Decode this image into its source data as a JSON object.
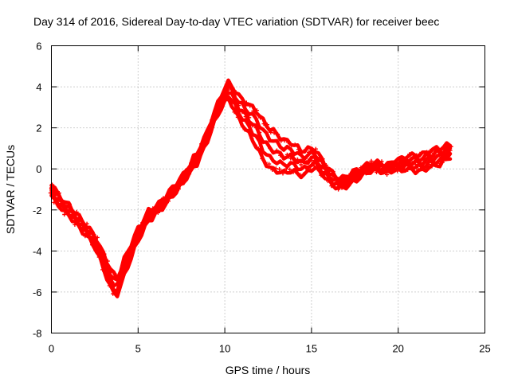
{
  "chart_data": {
    "type": "scatter",
    "title": "Day 314 of 2016, Sidereal Day-to-day VTEC variation (SDTVAR) for receiver beec",
    "xlabel": "GPS time / hours",
    "ylabel": "SDTVAR / TECUs",
    "xlim": [
      0,
      25
    ],
    "ylim": [
      -8,
      6
    ],
    "xticks": [
      0,
      5,
      10,
      15,
      20,
      25
    ],
    "yticks": [
      -8,
      -6,
      -4,
      -2,
      0,
      2,
      4,
      6
    ],
    "grid": true,
    "marker": "plus",
    "color": "#ff0000",
    "series": [
      {
        "name": "SDTVAR",
        "x": [
          0.0,
          0.2,
          0.4,
          0.6,
          0.8,
          1.0,
          1.2,
          1.4,
          1.6,
          1.8,
          2.0,
          2.2,
          2.4,
          2.6,
          2.8,
          3.0,
          3.2,
          3.4,
          3.6,
          3.8,
          4.0,
          4.2,
          4.4,
          4.6,
          4.8,
          5.0,
          5.2,
          5.4,
          5.6,
          5.8,
          6.0,
          6.2,
          6.4,
          6.6,
          6.8,
          7.0,
          7.2,
          7.4,
          7.6,
          7.8,
          8.0,
          8.2,
          8.4,
          8.6,
          8.8,
          9.0,
          9.2,
          9.4,
          9.6,
          9.8,
          10.0,
          10.2,
          10.4,
          10.6,
          10.8,
          11.0,
          11.2,
          11.4,
          11.6,
          11.8,
          12.0,
          12.2,
          12.4,
          12.6,
          12.8,
          13.0,
          13.2,
          13.4,
          13.6,
          13.8,
          14.0,
          14.2,
          14.4,
          14.6,
          14.8,
          15.0,
          15.2,
          15.4,
          15.6,
          15.8,
          16.0,
          16.2,
          16.4,
          16.6,
          16.8,
          17.0,
          17.2,
          17.4,
          17.6,
          17.8,
          18.0,
          18.2,
          18.4,
          18.6,
          18.8,
          19.0,
          19.2,
          19.4,
          19.6,
          19.8,
          20.0,
          20.2,
          20.4,
          20.6,
          20.8,
          21.0,
          21.2,
          21.4,
          21.6,
          21.8,
          22.0,
          22.2,
          22.4,
          22.6,
          22.8,
          23.0
        ],
        "y": [
          -1.0,
          -1.3,
          -1.5,
          -1.7,
          -1.9,
          -2.0,
          -2.2,
          -2.4,
          -2.6,
          -2.8,
          -3.0,
          -3.2,
          -3.4,
          -3.7,
          -4.1,
          -4.5,
          -4.9,
          -5.3,
          -5.6,
          -5.7,
          -5.3,
          -4.8,
          -4.4,
          -4.0,
          -3.6,
          -3.2,
          -2.9,
          -2.6,
          -2.3,
          -2.2,
          -2.0,
          -1.9,
          -1.7,
          -1.5,
          -1.3,
          -1.1,
          -0.9,
          -0.7,
          -0.5,
          -0.2,
          0.0,
          0.3,
          0.5,
          0.9,
          1.2,
          1.6,
          2.1,
          2.5,
          2.9,
          3.3,
          3.6,
          3.8,
          3.6,
          3.3,
          3.0,
          2.8,
          2.6,
          2.4,
          2.2,
          2.0,
          1.7,
          1.4,
          1.2,
          1.0,
          0.9,
          0.8,
          0.7,
          0.6,
          0.6,
          0.6,
          0.5,
          0.4,
          0.3,
          0.3,
          0.4,
          0.5,
          0.5,
          0.3,
          0.1,
          -0.1,
          -0.3,
          -0.5,
          -0.6,
          -0.7,
          -0.7,
          -0.6,
          -0.5,
          -0.4,
          -0.3,
          -0.2,
          -0.1,
          0.0,
          0.1,
          0.1,
          0.1,
          0.1,
          0.0,
          0.0,
          0.1,
          0.2,
          0.2,
          0.2,
          0.3,
          0.3,
          0.3,
          0.3,
          0.3,
          0.3,
          0.4,
          0.5,
          0.5,
          0.6,
          0.6,
          0.7,
          0.8,
          0.9
        ],
        "spread": [
          0.6,
          0.6,
          0.5,
          0.5,
          0.5,
          0.5,
          0.5,
          0.5,
          0.5,
          0.5,
          0.5,
          0.5,
          0.5,
          0.6,
          0.6,
          0.7,
          0.8,
          0.9,
          0.9,
          0.8,
          0.8,
          0.8,
          0.7,
          0.7,
          0.6,
          0.6,
          0.5,
          0.5,
          0.5,
          0.4,
          0.4,
          0.4,
          0.4,
          0.4,
          0.4,
          0.4,
          0.4,
          0.4,
          0.4,
          0.4,
          0.4,
          0.5,
          0.5,
          0.5,
          0.5,
          0.5,
          0.5,
          0.5,
          0.6,
          0.6,
          0.7,
          0.8,
          0.9,
          1.0,
          1.1,
          1.2,
          1.3,
          1.4,
          1.6,
          1.7,
          1.8,
          1.9,
          1.9,
          1.9,
          1.9,
          1.8,
          1.7,
          1.6,
          1.5,
          1.4,
          1.3,
          1.3,
          1.2,
          1.2,
          1.1,
          1.0,
          0.9,
          0.8,
          0.7,
          0.6,
          0.6,
          0.6,
          0.5,
          0.5,
          0.5,
          0.5,
          0.5,
          0.5,
          0.5,
          0.4,
          0.4,
          0.4,
          0.4,
          0.4,
          0.4,
          0.4,
          0.4,
          0.4,
          0.4,
          0.5,
          0.5,
          0.6,
          0.6,
          0.7,
          0.7,
          0.8,
          0.8,
          0.8,
          0.8,
          0.8,
          0.8,
          0.8,
          0.8,
          0.7,
          0.7,
          0.6
        ]
      }
    ]
  }
}
